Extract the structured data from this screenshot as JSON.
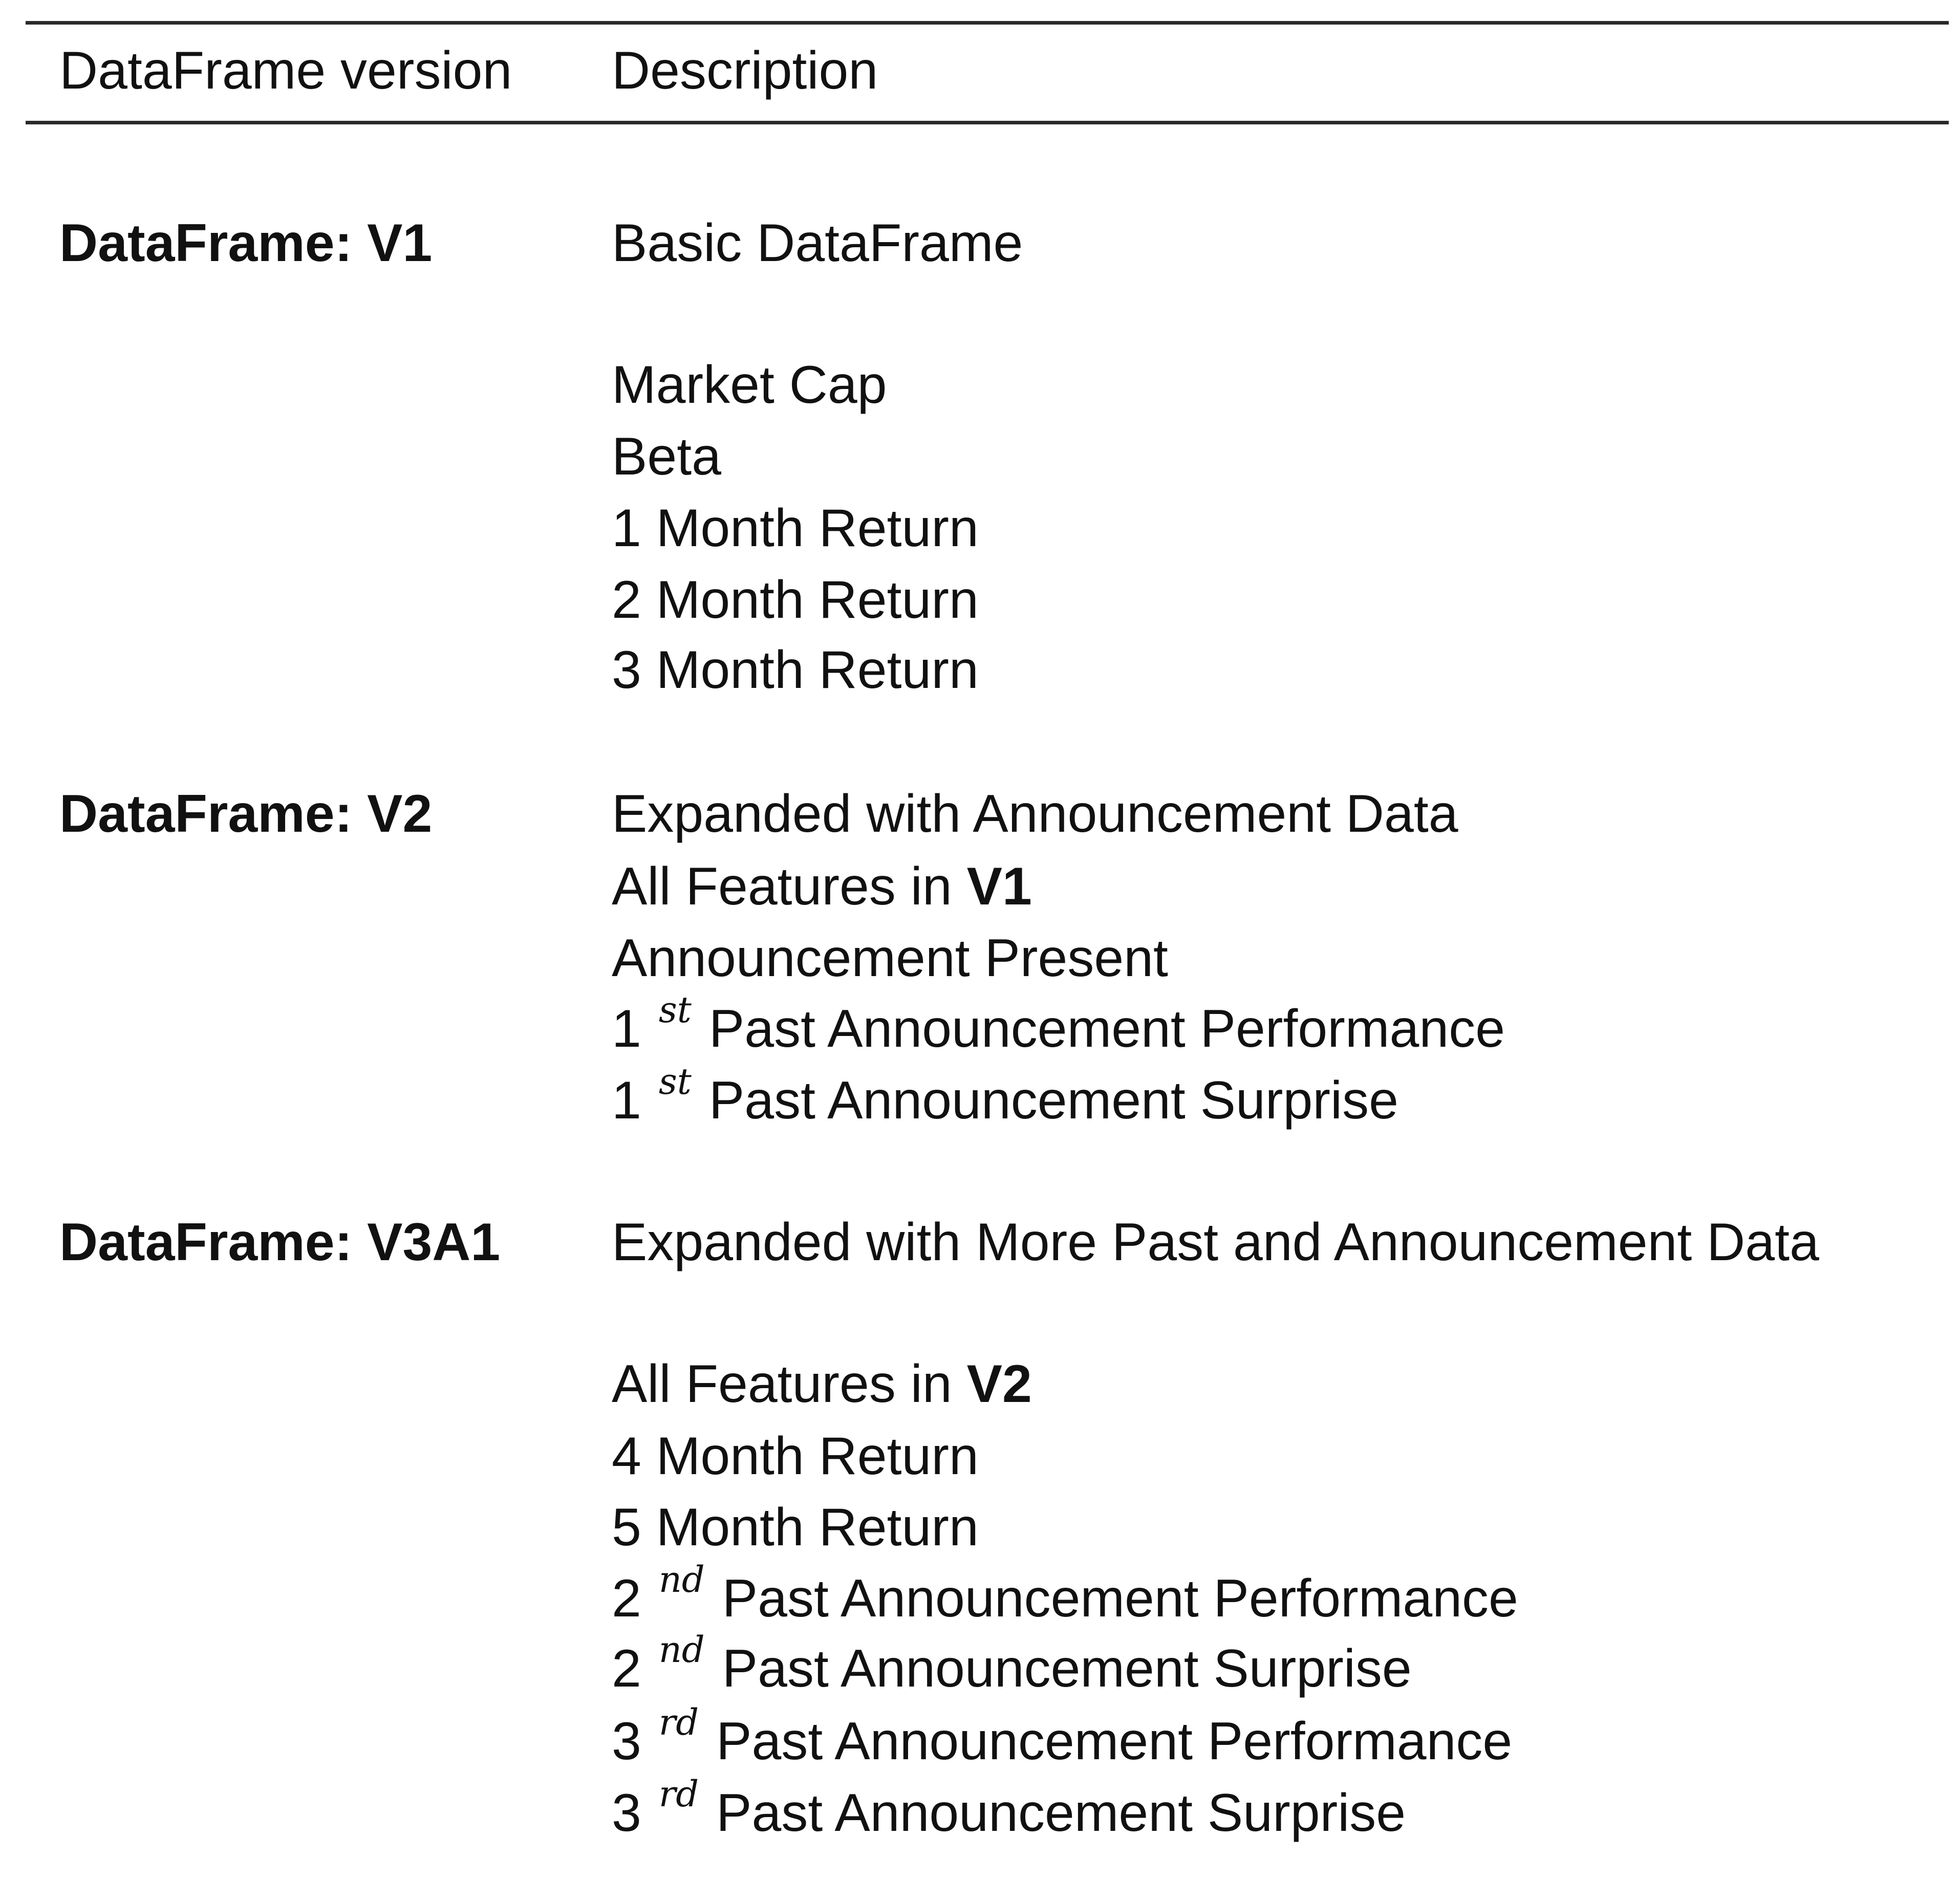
{
  "table": {
    "headers": [
      "DataFrame version",
      "Description"
    ],
    "rows": [
      {
        "version": "DataFrame: V1",
        "title": "Basic DataFrame",
        "features": [
          "Market Cap",
          "Beta",
          "1 Month Return",
          "2 Month Return",
          "3 Month Return"
        ]
      },
      {
        "version": "DataFrame: V2",
        "title": "Expanded with Announcement Data",
        "inherit": {
          "prefix": "All Features in ",
          "ref": "V1"
        },
        "features": [
          "Announcement Present",
          {
            "num": "1",
            "sup": "st",
            "text": "Past Announcement Performance"
          },
          {
            "num": "1",
            "sup": "st",
            "text": "Past Announcement Surprise"
          }
        ]
      },
      {
        "version": "DataFrame: V3A1",
        "title": "Expanded with More Past and Announcement Data",
        "inherit": {
          "prefix": "All Features in ",
          "ref": "V2"
        },
        "features": [
          "4 Month Return",
          "5 Month Return",
          {
            "num": "2",
            "sup": "nd",
            "text": "Past Announcement Performance"
          },
          {
            "num": "2",
            "sup": "nd",
            "text": "Past Announcement Surprise"
          },
          {
            "num": "3",
            "sup": "rd",
            "text": "Past Announcement Performance"
          },
          {
            "num": "3",
            "sup": "rd",
            "text": "Past Announcement Surprise"
          }
        ]
      }
    ]
  }
}
